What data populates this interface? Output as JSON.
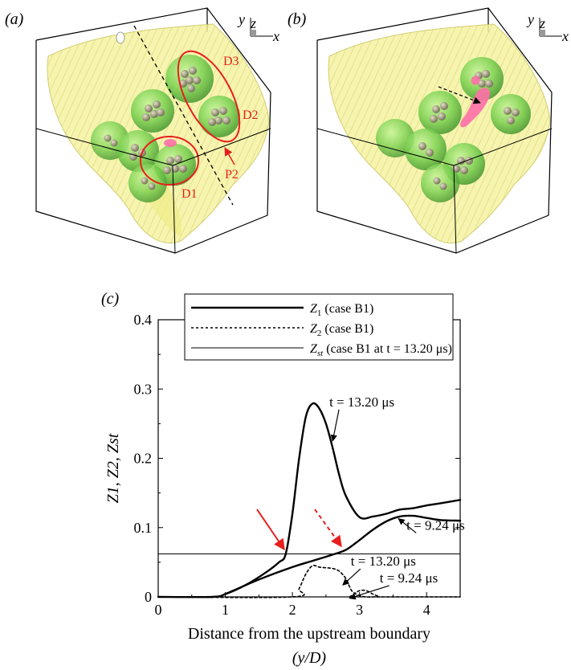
{
  "panels": {
    "a": {
      "label": "(a)",
      "annotations": [
        "D1",
        "D2",
        "D3",
        "P2"
      ],
      "axis_labels": {
        "y": "y",
        "z": "z",
        "x": "x"
      }
    },
    "b": {
      "label": "(b)",
      "axis_labels": {
        "y": "y",
        "z": "z",
        "x": "x"
      }
    }
  },
  "colors": {
    "isosurface": "#f2f08a",
    "droplet": "#7ed957",
    "particle": "#9c9877",
    "reaction": "#ff6fa8",
    "annotation": "#e81f1f"
  },
  "chart_data": {
    "type": "line",
    "panel_label": "(c)",
    "xlabel": "Distance from the upstream boundary",
    "xlabel_unit": "(y/D)",
    "ylabel": "Z1, Z2, Zst",
    "xlim": [
      0,
      4.5
    ],
    "ylim": [
      0,
      0.4
    ],
    "xticks": [
      "0",
      "1",
      "2",
      "3",
      "4"
    ],
    "yticks": [
      "0",
      "0.1",
      "0.2",
      "0.3",
      "0.4"
    ],
    "legend_position": "top",
    "legend": [
      {
        "symbol": "Z",
        "sub": "1",
        "text": " (case B1)"
      },
      {
        "symbol": "Z",
        "sub": "2",
        "text": " (case B1)"
      },
      {
        "symbol": "Z",
        "sub": "st",
        "text": " (case B1 at t = 13.20 μs)"
      }
    ],
    "series": [
      {
        "name": "Z1 (case B1)",
        "time": "t = 13.20 μs",
        "style": "thick",
        "x": [
          0.0,
          0.8,
          1.0,
          1.3,
          1.6,
          1.8,
          1.9,
          2.0,
          2.1,
          2.2,
          2.3,
          2.4,
          2.5,
          2.6,
          2.7,
          2.8,
          3.0,
          3.2,
          3.4,
          3.6,
          3.8,
          4.0,
          4.2,
          4.5
        ],
        "y": [
          0.0,
          0.0,
          0.004,
          0.017,
          0.035,
          0.05,
          0.062,
          0.12,
          0.2,
          0.26,
          0.279,
          0.272,
          0.25,
          0.215,
          0.175,
          0.145,
          0.115,
          0.116,
          0.12,
          0.126,
          0.128,
          0.132,
          0.135,
          0.14
        ]
      },
      {
        "name": "Z1 (case B1)",
        "time": "t = 9.24 μs",
        "style": "thick",
        "x": [
          1.0,
          1.5,
          2.0,
          2.3,
          2.6,
          2.8,
          3.0,
          3.2,
          3.4,
          3.6,
          3.8,
          4.0,
          4.2,
          4.5
        ],
        "y": [
          0.004,
          0.025,
          0.043,
          0.052,
          0.061,
          0.068,
          0.082,
          0.097,
          0.109,
          0.116,
          0.117,
          0.114,
          0.111,
          0.11
        ]
      },
      {
        "name": "Z2 (case B1)",
        "time": "t = 13.20 μs",
        "style": "dashed",
        "x": [
          0.0,
          2.0,
          2.1,
          2.2,
          2.3,
          2.4,
          2.5,
          2.6,
          2.7,
          2.8,
          2.85,
          2.9,
          3.0,
          3.1,
          3.3,
          4.5
        ],
        "y": [
          0.0,
          0.0,
          0.012,
          0.033,
          0.045,
          0.043,
          0.042,
          0.041,
          0.037,
          0.026,
          0.015,
          0.007,
          0.002,
          0.0,
          0.0,
          0.0
        ]
      },
      {
        "name": "Z2 (case B1)",
        "time": "t = 9.24 μs",
        "style": "dashed",
        "x": [
          2.85,
          2.9,
          3.0,
          3.1,
          3.2,
          3.3
        ],
        "y": [
          0.0,
          0.003,
          0.009,
          0.009,
          0.004,
          0.0
        ]
      },
      {
        "name": "Zst (case B1 at t = 13.20 μs)",
        "style": "thin",
        "x": [
          0.0,
          4.5
        ],
        "y": [
          0.062,
          0.062
        ]
      }
    ],
    "annotations": [
      {
        "text": "t = 13.20 μs",
        "tx": 2.55,
        "ty": 0.275,
        "ax": 2.6,
        "ay": 0.225
      },
      {
        "text": "t = 9.24 μs",
        "tx": 3.7,
        "ty": 0.097,
        "ax": 3.58,
        "ay": 0.113
      },
      {
        "text": "t = 13.20 μs",
        "tx": 2.87,
        "ty": 0.045,
        "ax": 2.75,
        "ay": 0.017
      },
      {
        "text": "t = 9.24 μs",
        "tx": 3.3,
        "ty": 0.021,
        "ax": 2.85,
        "ay": -0.002
      }
    ]
  }
}
